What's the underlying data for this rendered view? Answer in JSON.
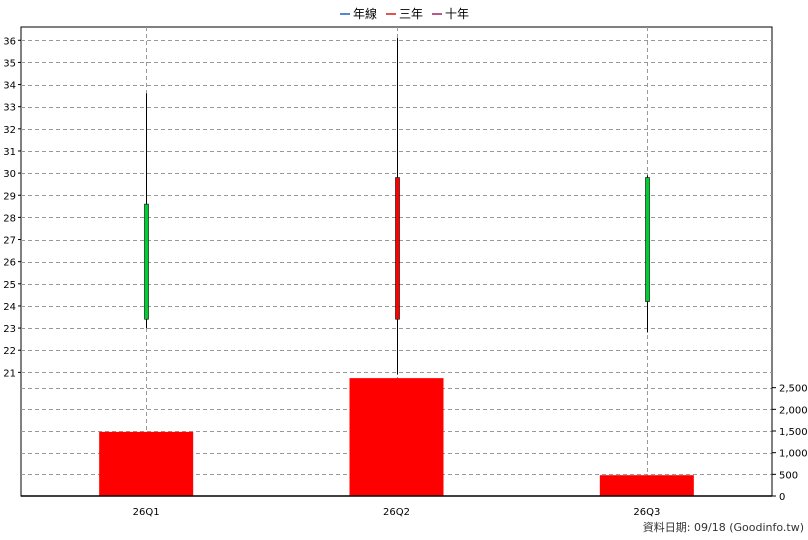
{
  "legend": [
    {
      "label": "年線",
      "color": "#1f5fbf"
    },
    {
      "label": "三年",
      "color": "#d81b1b"
    },
    {
      "label": "十年",
      "color": "#a0205a"
    }
  ],
  "footer": "資料日期: 09/18  (Goodinfo.tw)",
  "chart_data": {
    "type": "candlestick+bar",
    "categories": [
      "26Q1",
      "26Q2",
      "26Q3"
    ],
    "price": {
      "ylim": [
        20.7,
        36.6
      ],
      "ticks": [
        21,
        22,
        23,
        24,
        25,
        26,
        27,
        28,
        29,
        30,
        31,
        32,
        33,
        34,
        35,
        36
      ],
      "candles": [
        {
          "open": 23.4,
          "high": 33.6,
          "low": 23.0,
          "close": 28.6,
          "color": "#00cc33"
        },
        {
          "open": 29.8,
          "high": 36.1,
          "low": 20.9,
          "close": 23.4,
          "color": "#ff0000"
        },
        {
          "open": 24.2,
          "high": 29.9,
          "low": 22.8,
          "close": 29.8,
          "color": "#00cc33"
        }
      ]
    },
    "volume": {
      "ylim": [
        0,
        2700
      ],
      "ticks": [
        0,
        500,
        1000,
        1500,
        2000,
        2500
      ],
      "tick_labels": [
        "0",
        "500",
        "1,000",
        "1,500",
        "2,000",
        "2,500"
      ],
      "values": [
        1480,
        2720,
        480
      ],
      "color": "#ff0000"
    },
    "grid": true
  }
}
